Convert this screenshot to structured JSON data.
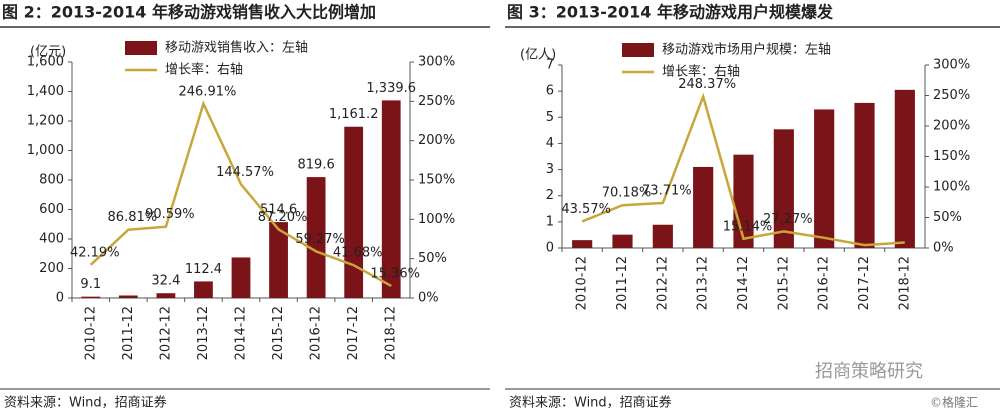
{
  "chart_data": [
    {
      "type": "bar",
      "title": "图 2：2013-2014 年移动游戏销售收入大比例增加",
      "y_label": "(亿元)",
      "categories": [
        "2010-12",
        "2011-12",
        "2012-12",
        "2013-12",
        "2014-12",
        "2015-12",
        "2016-12",
        "2017-12",
        "2018-12"
      ],
      "series": [
        {
          "name": "移动游戏销售收入：左轴",
          "type": "bar",
          "color": "#7a1418",
          "values": [
            9.1,
            17.0,
            32.4,
            112.4,
            274.9,
            514.6,
            819.6,
            1161.2,
            1339.6
          ],
          "value_labels": [
            "9.1",
            null,
            "32.4",
            "112.4",
            null,
            "514.6",
            "819.6",
            "1,161.2",
            "1,339.6"
          ]
        },
        {
          "name": "增长率：右轴",
          "type": "line",
          "axis": "y2",
          "color": "#c9a53a",
          "values": [
            42.19,
            86.81,
            90.59,
            246.91,
            144.57,
            87.2,
            59.27,
            41.68,
            15.36
          ],
          "value_labels": [
            "42.19%",
            "86.81%",
            "90.59%",
            "246.91%",
            "144.57%",
            "87.20%",
            "59.27%",
            "41.68%",
            "15.36%"
          ]
        }
      ],
      "ylim": [
        0,
        1600
      ],
      "yticks": [
        0,
        200,
        400,
        600,
        800,
        {
          "value": 1000,
          "label": "1,000"
        },
        {
          "value": 1200,
          "label": "1,200"
        },
        {
          "value": 1400,
          "label": "1,400"
        },
        {
          "value": 1600,
          "label": "1,600"
        }
      ],
      "y2lim": [
        0,
        300
      ],
      "y2ticks": [
        {
          "value": 0,
          "label": "0%"
        },
        {
          "value": 50,
          "label": "50%"
        },
        {
          "value": 100,
          "label": "100%"
        },
        {
          "value": 150,
          "label": "150%"
        },
        {
          "value": 200,
          "label": "200%"
        },
        {
          "value": 250,
          "label": "250%"
        },
        {
          "value": 300,
          "label": "300%"
        }
      ],
      "legend": "top",
      "source": "资料来源：Wind，招商证券"
    },
    {
      "type": "bar",
      "title": "图 3：2013-2014 年移动游戏用户规模爆发",
      "y_label": "(亿人)",
      "categories": [
        "2010-12",
        "2011-12",
        "2012-12",
        "2013-12",
        "2014-12",
        "2015-12",
        "2016-12",
        "2017-12",
        "2018-12"
      ],
      "series": [
        {
          "name": "移动游戏市场用户规模：左轴",
          "type": "bar",
          "color": "#7a1418",
          "values": [
            0.3,
            0.51,
            0.89,
            3.1,
            3.57,
            4.54,
            5.3,
            5.55,
            6.05
          ]
        },
        {
          "name": "增长率：右轴",
          "type": "line",
          "axis": "y2",
          "color": "#c9a53a",
          "values": [
            43.57,
            70.18,
            73.71,
            248.37,
            15.14,
            27.27,
            16.7,
            4.7,
            9.0
          ],
          "value_labels": [
            "43.57%",
            "70.18%",
            "73.71%",
            "248.37%",
            "15.14%",
            "27.27%",
            null,
            null,
            null
          ]
        }
      ],
      "ylim": [
        0,
        7
      ],
      "yticks": [
        0,
        1,
        2,
        3,
        4,
        5,
        6,
        7
      ],
      "y2lim": [
        0,
        300
      ],
      "y2ticks": [
        {
          "value": 0,
          "label": "0%"
        },
        {
          "value": 50,
          "label": "50%"
        },
        {
          "value": 100,
          "label": "100%"
        },
        {
          "value": 150,
          "label": "150%"
        },
        {
          "value": 200,
          "label": "200%"
        },
        {
          "value": 250,
          "label": "250%"
        },
        {
          "value": 300,
          "label": "300%"
        }
      ],
      "legend": "top",
      "source": "资料来源：Wind，招商证券"
    }
  ],
  "watermark": "招商策略研究",
  "credit": "©格隆汇"
}
